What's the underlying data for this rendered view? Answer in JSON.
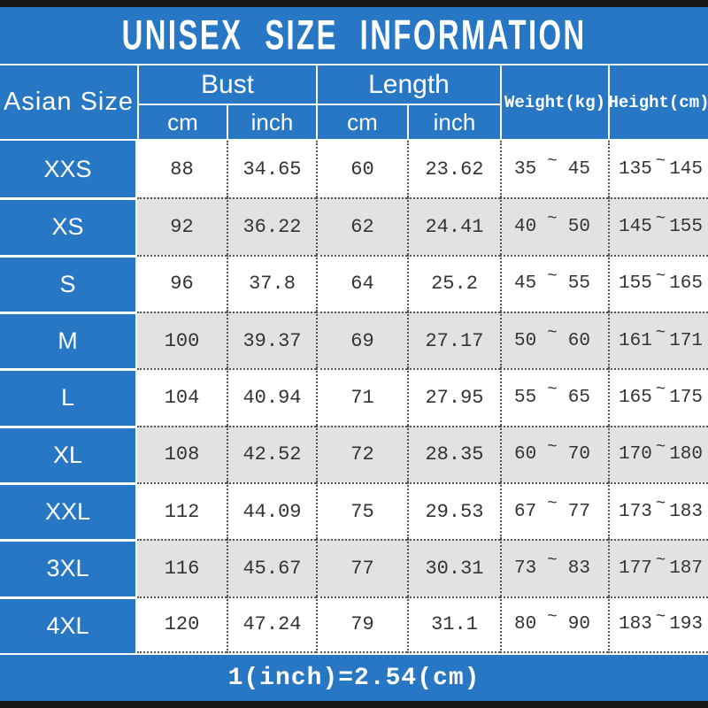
{
  "title": "UNISEX SIZE INFORMATION",
  "footer_note": "1(inch)=2.54(cm)",
  "tilde": "~",
  "colors": {
    "accent_blue": "#2777c5",
    "row_alt_gray": "#e4e2e1",
    "edge_bar_black": "#161616",
    "text_dark": "#333333"
  },
  "header": {
    "size_label": "Asian Size",
    "bust": {
      "label": "Bust",
      "sub": [
        "cm",
        "inch"
      ]
    },
    "length": {
      "label": "Length",
      "sub": [
        "cm",
        "inch"
      ]
    },
    "weight_label": "Weight(kg)",
    "height_label": "Height(cm)"
  },
  "chart_data": {
    "type": "table",
    "title": "UNISEX SIZE INFORMATION",
    "columns": [
      "Asian Size",
      "Bust cm",
      "Bust inch",
      "Length cm",
      "Length inch",
      "Weight(kg) min",
      "Weight(kg) max",
      "Height(cm) min",
      "Height(cm) max"
    ],
    "rows": [
      [
        "XXS",
        "88",
        "34.65",
        "60",
        "23.62",
        "35",
        "45",
        "135",
        "145"
      ],
      [
        "XS",
        "92",
        "36.22",
        "62",
        "24.41",
        "40",
        "50",
        "145",
        "155"
      ],
      [
        "S",
        "96",
        "37.8",
        "64",
        "25.2",
        "45",
        "55",
        "155",
        "165"
      ],
      [
        "M",
        "100",
        "39.37",
        "69",
        "27.17",
        "50",
        "60",
        "161",
        "171"
      ],
      [
        "L",
        "104",
        "40.94",
        "71",
        "27.95",
        "55",
        "65",
        "165",
        "175"
      ],
      [
        "XL",
        "108",
        "42.52",
        "72",
        "28.35",
        "60",
        "70",
        "170",
        "180"
      ],
      [
        "XXL",
        "112",
        "44.09",
        "75",
        "29.53",
        "67",
        "77",
        "173",
        "183"
      ],
      [
        "3XL",
        "116",
        "45.67",
        "77",
        "30.31",
        "73",
        "83",
        "177",
        "187"
      ],
      [
        "4XL",
        "120",
        "47.24",
        "79",
        "31.1",
        "80",
        "90",
        "183",
        "193"
      ]
    ],
    "note": "1(inch)=2.54(cm)"
  }
}
